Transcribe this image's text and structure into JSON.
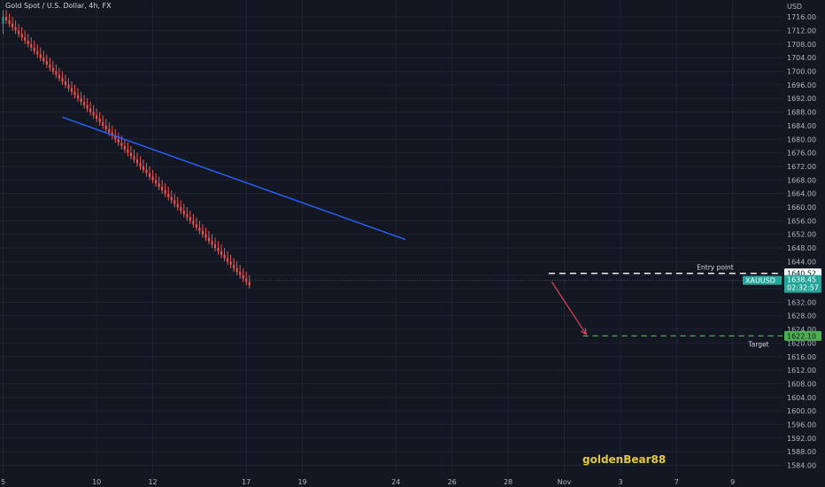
{
  "symbol": {
    "title": "Gold Spot / U.S. Dollar, 4h, FX"
  },
  "watermark": "goldenBear88",
  "colors": {
    "background": "#131722",
    "grid": "#1f2332",
    "up": "#26a69a",
    "down": "#ef5350",
    "trendline": "#2962ff",
    "entry": "#ffffff",
    "target": "#4caf50",
    "arrow": "#e0455a",
    "text": "#b2b5be",
    "price_tag": "#26a69a",
    "target_tag": "#4caf50"
  },
  "chart_data": {
    "type": "candlestick",
    "title": "Gold Spot / U.S. Dollar, 4h, FX",
    "y_axis": {
      "unit": "USD",
      "range": [
        1581,
        1721
      ],
      "ticks": [
        1716,
        1712,
        1708,
        1704,
        1700,
        1696,
        1692,
        1688,
        1684,
        1680,
        1676,
        1672,
        1668,
        1664,
        1660,
        1656,
        1652,
        1648,
        1644,
        1640,
        1636,
        1632,
        1628,
        1624,
        1620,
        1616,
        1612,
        1608,
        1604,
        1600,
        1596,
        1592,
        1588,
        1584
      ],
      "tick_labels": [
        "1716.00",
        "1712.00",
        "1708.00",
        "1704.00",
        "1700.00",
        "1696.00",
        "1692.00",
        "1688.00",
        "1684.00",
        "1680.00",
        "1676.00",
        "1672.00",
        "1668.00",
        "1664.00",
        "1660.00",
        "1656.00",
        "1652.00",
        "1648.00",
        "1644.00",
        "1640.00",
        "1636.00",
        "1632.00",
        "1628.00",
        "1624.00",
        "1620.00",
        "1616.00",
        "1612.00",
        "1608.00",
        "1604.00",
        "1600.00",
        "1596.00",
        "1592.00",
        "1588.00",
        "1584.00"
      ]
    },
    "x_axis": {
      "labels": [
        "5",
        "10",
        "12",
        "17",
        "19",
        "24",
        "26",
        "28",
        "Nov",
        "3",
        "7",
        "9"
      ],
      "label_index": [
        0,
        30,
        48,
        78,
        96,
        126,
        144,
        162,
        180,
        198,
        216,
        234
      ],
      "range_index": [
        -1,
        250
      ]
    },
    "candles": [
      [
        1714,
        1718,
        1711,
        1716
      ],
      [
        1716,
        1718,
        1714,
        1715
      ],
      [
        1715,
        1717,
        1713,
        1714
      ],
      [
        1714,
        1716,
        1712,
        1713
      ],
      [
        1713,
        1715,
        1711,
        1712
      ],
      [
        1712,
        1714,
        1710,
        1711
      ],
      [
        1711,
        1713,
        1709,
        1710
      ],
      [
        1710,
        1712,
        1708,
        1709
      ],
      [
        1709,
        1711,
        1707,
        1708
      ],
      [
        1708,
        1710,
        1706,
        1707
      ],
      [
        1707,
        1709,
        1705,
        1706
      ],
      [
        1706,
        1708,
        1704,
        1705
      ],
      [
        1705,
        1707,
        1703,
        1704
      ],
      [
        1704,
        1706,
        1702,
        1703
      ],
      [
        1703,
        1705,
        1701,
        1702
      ],
      [
        1702,
        1704,
        1700,
        1701
      ],
      [
        1701,
        1703,
        1699,
        1700
      ],
      [
        1700,
        1702,
        1698,
        1699
      ],
      [
        1699,
        1701,
        1697,
        1698
      ],
      [
        1698,
        1700,
        1696,
        1697
      ],
      [
        1697,
        1699,
        1695,
        1696
      ],
      [
        1696,
        1698,
        1694,
        1695
      ],
      [
        1695,
        1697,
        1693,
        1694
      ],
      [
        1694,
        1696,
        1692,
        1693
      ],
      [
        1693,
        1695,
        1691,
        1692
      ],
      [
        1692,
        1694,
        1690,
        1691
      ],
      [
        1691,
        1693,
        1689,
        1690
      ],
      [
        1690,
        1692,
        1688,
        1689
      ],
      [
        1689,
        1691,
        1687,
        1688
      ],
      [
        1688,
        1690,
        1686,
        1687
      ],
      [
        1687,
        1689,
        1685,
        1686
      ],
      [
        1686,
        1688,
        1684,
        1685
      ],
      [
        1685,
        1687,
        1683,
        1684
      ],
      [
        1684,
        1686,
        1682,
        1683
      ],
      [
        1683,
        1685,
        1681,
        1682
      ],
      [
        1682,
        1684,
        1680,
        1681
      ],
      [
        1681,
        1683,
        1679,
        1680
      ],
      [
        1680,
        1682,
        1678,
        1679
      ],
      [
        1679,
        1681,
        1677,
        1678
      ],
      [
        1678,
        1680,
        1676,
        1677
      ],
      [
        1677,
        1679,
        1675,
        1676
      ],
      [
        1676,
        1678,
        1674,
        1675
      ],
      [
        1675,
        1677,
        1673,
        1674
      ],
      [
        1674,
        1676,
        1672,
        1673
      ],
      [
        1673,
        1675,
        1671,
        1672
      ],
      [
        1672,
        1674,
        1670,
        1671
      ],
      [
        1671,
        1673,
        1669,
        1670
      ],
      [
        1670,
        1672,
        1668,
        1669
      ],
      [
        1669,
        1671,
        1667,
        1668
      ],
      [
        1668,
        1670,
        1666,
        1667
      ],
      [
        1667,
        1669,
        1665,
        1666
      ],
      [
        1666,
        1668,
        1664,
        1665
      ],
      [
        1665,
        1667,
        1663,
        1664
      ],
      [
        1664,
        1666,
        1662,
        1663
      ],
      [
        1663,
        1665,
        1661,
        1662
      ],
      [
        1662,
        1664,
        1660,
        1661
      ],
      [
        1661,
        1663,
        1659,
        1660
      ],
      [
        1660,
        1662,
        1658,
        1659
      ],
      [
        1659,
        1661,
        1657,
        1658
      ],
      [
        1658,
        1660,
        1656,
        1657
      ],
      [
        1657,
        1659,
        1655,
        1656
      ],
      [
        1656,
        1658,
        1654,
        1655
      ],
      [
        1655,
        1657,
        1653,
        1654
      ],
      [
        1654,
        1656,
        1652,
        1653
      ],
      [
        1653,
        1655,
        1651,
        1652
      ],
      [
        1652,
        1654,
        1650,
        1651
      ],
      [
        1651,
        1653,
        1649,
        1650
      ],
      [
        1650,
        1652,
        1648,
        1649
      ],
      [
        1649,
        1651,
        1647,
        1648
      ],
      [
        1648,
        1650,
        1646,
        1647
      ],
      [
        1647,
        1649,
        1645,
        1646
      ],
      [
        1646,
        1648,
        1644,
        1645
      ],
      [
        1645,
        1647,
        1643,
        1644
      ],
      [
        1644,
        1646,
        1642,
        1643
      ],
      [
        1643,
        1645,
        1641,
        1642
      ],
      [
        1642,
        1644,
        1640,
        1641
      ],
      [
        1641,
        1643,
        1639,
        1640
      ],
      [
        1640,
        1642,
        1638,
        1639
      ],
      [
        1639,
        1641,
        1637,
        1638
      ],
      [
        1638,
        1640,
        1636,
        1637
      ]
    ],
    "series_note": "",
    "trendline": {
      "from": [
        19,
        1686.5
      ],
      "to": [
        129,
        1650.5
      ]
    },
    "entry_point": {
      "label": "Entry point",
      "price": 1640.52,
      "price_label": "1640.52",
      "from_index": 175
    },
    "target": {
      "label": "Target",
      "price": 1622.1,
      "price_label": "1622.10",
      "from_index": 186
    },
    "current_price": {
      "symbol": "XAUUSD",
      "price": 1638.45,
      "price_label": "1638.45",
      "countdown": "02:32:57"
    },
    "arrow": {
      "from": [
        176,
        1638
      ],
      "to": [
        187,
        1622.6
      ]
    }
  }
}
